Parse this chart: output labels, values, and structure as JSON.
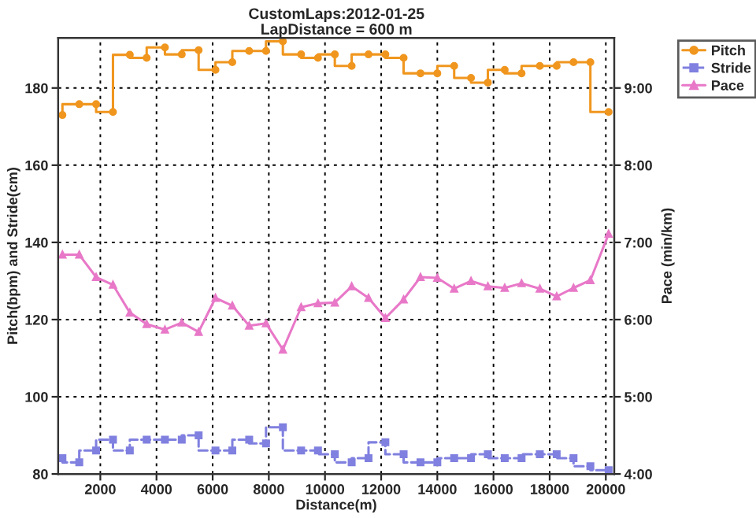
{
  "chart_data": {
    "type": "step",
    "title": "CustomLaps:2012-01-25",
    "subtitle": "LapDistance = 600 m",
    "xlabel": "Distance(m)",
    "ylabel": "Pitch(bpm) and Stride(cm)",
    "y2label": "Pace (min/km)",
    "x": [
      650,
      1250,
      1850,
      2450,
      3050,
      3650,
      4300,
      4900,
      5500,
      6100,
      6700,
      7300,
      7900,
      8500,
      9150,
      9750,
      10350,
      10950,
      11550,
      12150,
      12800,
      13400,
      14000,
      14600,
      15200,
      15800,
      16400,
      17000,
      17650,
      18250,
      18850,
      19450,
      20100
    ],
    "series": [
      {
        "name": "Pitch",
        "color": "#f0961e",
        "marker": "circle",
        "values": [
          173.0,
          175.8,
          175.8,
          173.8,
          188.6,
          187.8,
          190.5,
          188.7,
          189.8,
          184.7,
          186.7,
          189.6,
          189.6,
          192.1,
          188.7,
          187.8,
          188.7,
          185.7,
          188.7,
          188.7,
          187.8,
          183.8,
          183.8,
          185.7,
          182.6,
          181.4,
          184.7,
          183.8,
          185.7,
          185.7,
          186.7,
          186.7,
          173.8
        ]
      },
      {
        "name": "Stride",
        "color": "#8080e0",
        "marker": "square",
        "line_style": "dashed",
        "values": [
          84.1,
          83.0,
          86.1,
          88.9,
          86.1,
          88.9,
          88.9,
          88.9,
          90.0,
          86.1,
          86.1,
          88.9,
          87.9,
          92.1,
          86.1,
          86.1,
          85.1,
          83.0,
          84.1,
          88.2,
          85.1,
          83.0,
          83.0,
          84.1,
          84.1,
          85.1,
          84.1,
          84.1,
          85.1,
          85.1,
          84.1,
          82.0,
          81.0
        ]
      },
      {
        "name": "Pace",
        "type": "line",
        "axis": "y2",
        "color": "#e878c8",
        "marker": "triangle",
        "values": [
          6.84,
          6.84,
          6.55,
          6.45,
          6.09,
          5.94,
          5.87,
          5.96,
          5.84,
          6.28,
          6.18,
          5.92,
          5.95,
          5.61,
          6.16,
          6.21,
          6.22,
          6.43,
          6.28,
          6.02,
          6.26,
          6.55,
          6.54,
          6.4,
          6.5,
          6.43,
          6.41,
          6.47,
          6.4,
          6.3,
          6.41,
          6.51,
          7.11
        ]
      }
    ],
    "xlim": [
      500,
      20300
    ],
    "xticks": [
      2000,
      4000,
      6000,
      8000,
      10000,
      12000,
      14000,
      16000,
      18000,
      20000
    ],
    "ylim": [
      80,
      193
    ],
    "yticks": [
      80,
      100,
      120,
      140,
      160,
      180
    ],
    "y2lim": [
      4,
      9.65
    ],
    "y2ticks": [
      {
        "value": 4,
        "label": "4:00"
      },
      {
        "value": 5,
        "label": "5:00"
      },
      {
        "value": 6,
        "label": "6:00"
      },
      {
        "value": 7,
        "label": "7:00"
      },
      {
        "value": 8,
        "label": "8:00"
      },
      {
        "value": 9,
        "label": "9:00"
      }
    ],
    "grid": true,
    "legend": "right"
  }
}
